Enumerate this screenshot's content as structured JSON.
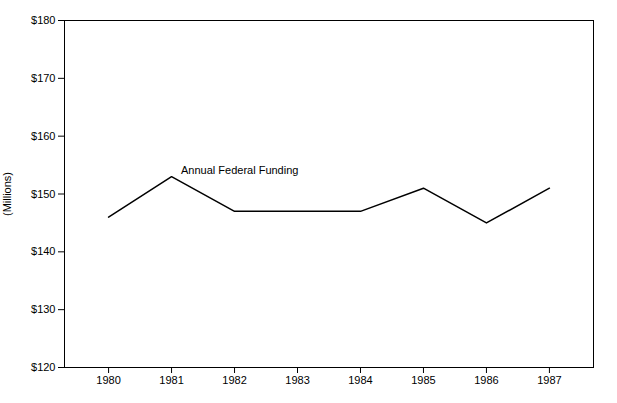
{
  "chart_data": {
    "type": "line",
    "x": [
      1980,
      1981,
      1982,
      1983,
      1984,
      1985,
      1986,
      1987
    ],
    "values": [
      146,
      153,
      147,
      147,
      147,
      151,
      145,
      151
    ],
    "color": "#000000",
    "ylabel": "(Millions)",
    "xlim": [
      1979.3,
      1987.7
    ],
    "xticks": [
      1980,
      1981,
      1982,
      1983,
      1984,
      1985,
      1986,
      1987
    ],
    "ylim": [
      120,
      180
    ],
    "yticks": [
      {
        "value": 120,
        "label": "$120"
      },
      {
        "value": 130,
        "label": "$130"
      },
      {
        "value": 140,
        "label": "$140"
      },
      {
        "value": 150,
        "label": "$150"
      },
      {
        "value": 160,
        "label": "$160"
      },
      {
        "value": 170,
        "label": "$170"
      },
      {
        "value": 180,
        "label": "$180"
      }
    ],
    "grid": false,
    "annotations": [
      {
        "text": "Annual Federal Funding",
        "x": 1981.15,
        "y": 153.5
      }
    ]
  }
}
